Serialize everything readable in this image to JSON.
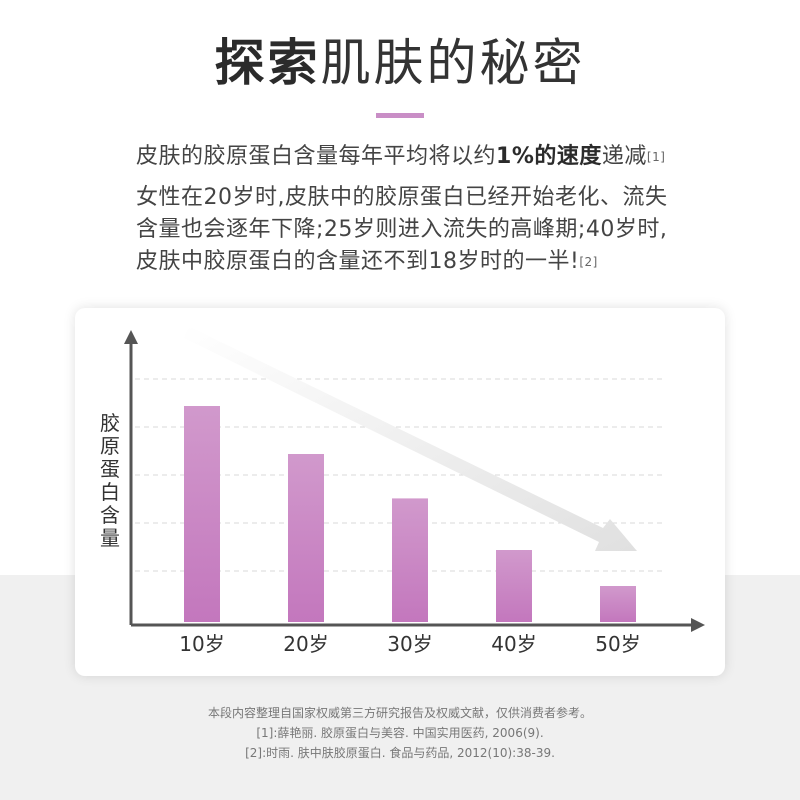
{
  "header": {
    "title_bold": "探索",
    "title_light": "肌肤的秘密"
  },
  "intro": {
    "line1_pre": "皮肤的胶原蛋白含量每年平均将以约",
    "line1_bold": "1%的速度",
    "line1_post": "递减",
    "line1_ref": "[1]",
    "paragraph2": "女性在20岁时,皮肤中的胶原蛋白已经开始老化、流失含量也会逐年下降;25岁则进入流失的高峰期;40岁时,皮肤中胶原蛋白的含量还不到18岁时的一半!",
    "paragraph2_ref": "[2]"
  },
  "chart_data": {
    "type": "bar",
    "ylabel": "胶原蛋白含量",
    "xlabel": "",
    "title": "",
    "categories": [
      "10岁",
      "20岁",
      "30岁",
      "40岁",
      "50岁"
    ],
    "values": [
      90,
      70,
      51.5,
      30,
      15
    ],
    "ylim": [
      0,
      100
    ],
    "grid": true,
    "trend_arrow": "decreasing",
    "colors": {
      "bar_top": "#d199cc",
      "bar_bottom": "#c377bd",
      "axis": "#555555",
      "grid": "#d9d9d9",
      "arrow": "#e0e0e0"
    }
  },
  "footer": {
    "note": "本段内容整理自国家权威第三方研究报告及权威文献，仅供消费者参考。",
    "ref1": "[1]:薛艳丽. 胶原蛋白与美容. 中国实用医药, 2006(9).",
    "ref2": "[2]:时雨. 肤中肤胶原蛋白. 食品与药品, 2012(10):38-39."
  }
}
